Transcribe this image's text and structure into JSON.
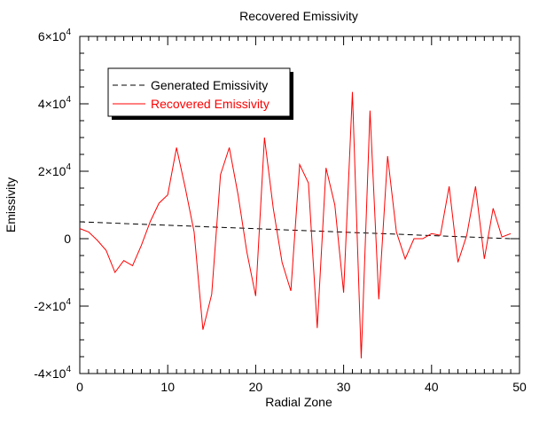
{
  "chart_data": {
    "type": "line",
    "title": "Recovered Emissivity",
    "xlabel": "Radial Zone",
    "ylabel": "Emissivity",
    "xlim": [
      0,
      50
    ],
    "ylim": [
      -40000,
      60000
    ],
    "x_ticks": [
      {
        "value": 0,
        "label": "0"
      },
      {
        "value": 10,
        "label": "10"
      },
      {
        "value": 20,
        "label": "20"
      },
      {
        "value": 30,
        "label": "30"
      },
      {
        "value": 40,
        "label": "40"
      },
      {
        "value": 50,
        "label": "50"
      }
    ],
    "y_ticks": [
      {
        "value": -40000,
        "mantissa": "-4×10",
        "exponent": "4"
      },
      {
        "value": -20000,
        "mantissa": "-2×10",
        "exponent": "4"
      },
      {
        "value": 0,
        "mantissa": "0",
        "exponent": ""
      },
      {
        "value": 20000,
        "mantissa": "2×10",
        "exponent": "4"
      },
      {
        "value": 40000,
        "mantissa": "4×10",
        "exponent": "4"
      },
      {
        "value": 60000,
        "mantissa": "6×10",
        "exponent": "4"
      }
    ],
    "grid": false,
    "legend_position": "top-left",
    "series": [
      {
        "name": "Generated Emissivity",
        "color": "#000000",
        "style": "dashed",
        "x": [
          0,
          49
        ],
        "y": [
          5000,
          0
        ]
      },
      {
        "name": "Recovered Emissivity",
        "color": "#ff0000",
        "style": "solid",
        "x": [
          0,
          1,
          2,
          3,
          4,
          5,
          6,
          7,
          8,
          9,
          10,
          11,
          12,
          13,
          14,
          15,
          16,
          17,
          18,
          19,
          20,
          21,
          22,
          23,
          24,
          25,
          26,
          27,
          28,
          29,
          30,
          31,
          32,
          33,
          34,
          35,
          36,
          37,
          38,
          39,
          40,
          41,
          42,
          43,
          44,
          45,
          46,
          47,
          48,
          49
        ],
        "y": [
          3000,
          2000,
          -500,
          -3500,
          -10000,
          -6500,
          -8000,
          -2000,
          5000,
          10500,
          13000,
          27000,
          15000,
          2000,
          -27000,
          -16500,
          19000,
          27000,
          13000,
          -4000,
          -17000,
          30000,
          9000,
          -7000,
          -15500,
          22000,
          16500,
          -26500,
          21000,
          10000,
          -16000,
          43500,
          -35500,
          38000,
          -18000,
          24500,
          2000,
          -6000,
          0,
          0,
          1500,
          1000,
          15500,
          -7000,
          1000,
          15500,
          -6000,
          9000,
          500,
          1500
        ]
      }
    ]
  }
}
